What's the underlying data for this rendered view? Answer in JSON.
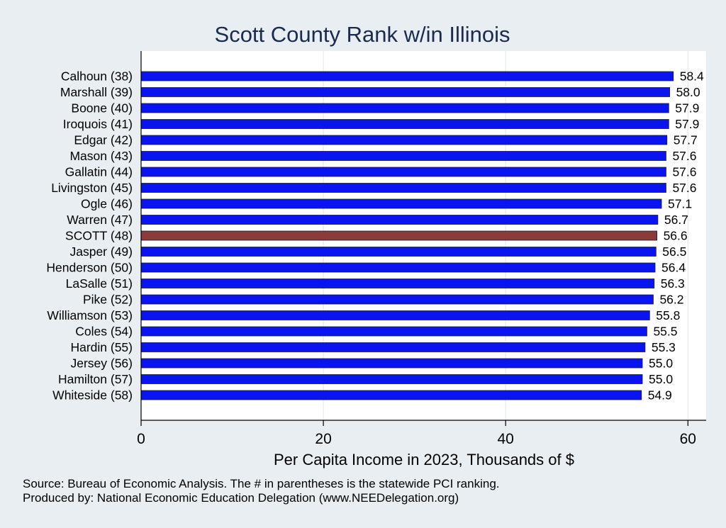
{
  "chart_data": {
    "type": "bar",
    "orientation": "horizontal",
    "title": "Scott County Rank w/in Illinois",
    "xlabel": "Per Capita Income in 2023, Thousands of $",
    "ylabel": "",
    "xlim": [
      0,
      62
    ],
    "xticks": [
      0,
      20,
      40,
      60
    ],
    "grid": true,
    "categories": [
      "Calhoun (38)",
      "Marshall (39)",
      "Boone (40)",
      "Iroquois (41)",
      "Edgar (42)",
      "Mason (43)",
      "Gallatin (44)",
      "Livingston (45)",
      "Ogle (46)",
      "Warren (47)",
      "SCOTT (48)",
      "Jasper (49)",
      "Henderson (50)",
      "LaSalle (51)",
      "Pike (52)",
      "Williamson (53)",
      "Coles (54)",
      "Hardin (55)",
      "Jersey (56)",
      "Hamilton (57)",
      "Whiteside (58)"
    ],
    "values": [
      58.4,
      58.0,
      57.9,
      57.9,
      57.7,
      57.6,
      57.6,
      57.6,
      57.1,
      56.7,
      56.6,
      56.5,
      56.4,
      56.3,
      56.2,
      55.8,
      55.5,
      55.3,
      55.0,
      55.0,
      54.9
    ],
    "value_labels": [
      "58.4",
      "58.0",
      "57.9",
      "57.9",
      "57.7",
      "57.6",
      "57.6",
      "57.6",
      "57.1",
      "56.7",
      "56.6",
      "56.5",
      "56.4",
      "56.3",
      "56.2",
      "55.8",
      "55.5",
      "55.3",
      "55.0",
      "55.0",
      "54.9"
    ],
    "highlight_index": 10,
    "colors": {
      "bar": "#0a14f0",
      "highlight": "#8c3b3b",
      "background": "#e8eef1",
      "plot_background": "#ffffff",
      "title": "#1a2b4f",
      "grid": "#e8eef1"
    }
  },
  "footnotes": [
    "Source: Bureau of Economic Analysis. The # in parentheses is the statewide PCI ranking.",
    "Produced by: National Economic Education Delegation (www.NEEDelegation.org)"
  ]
}
